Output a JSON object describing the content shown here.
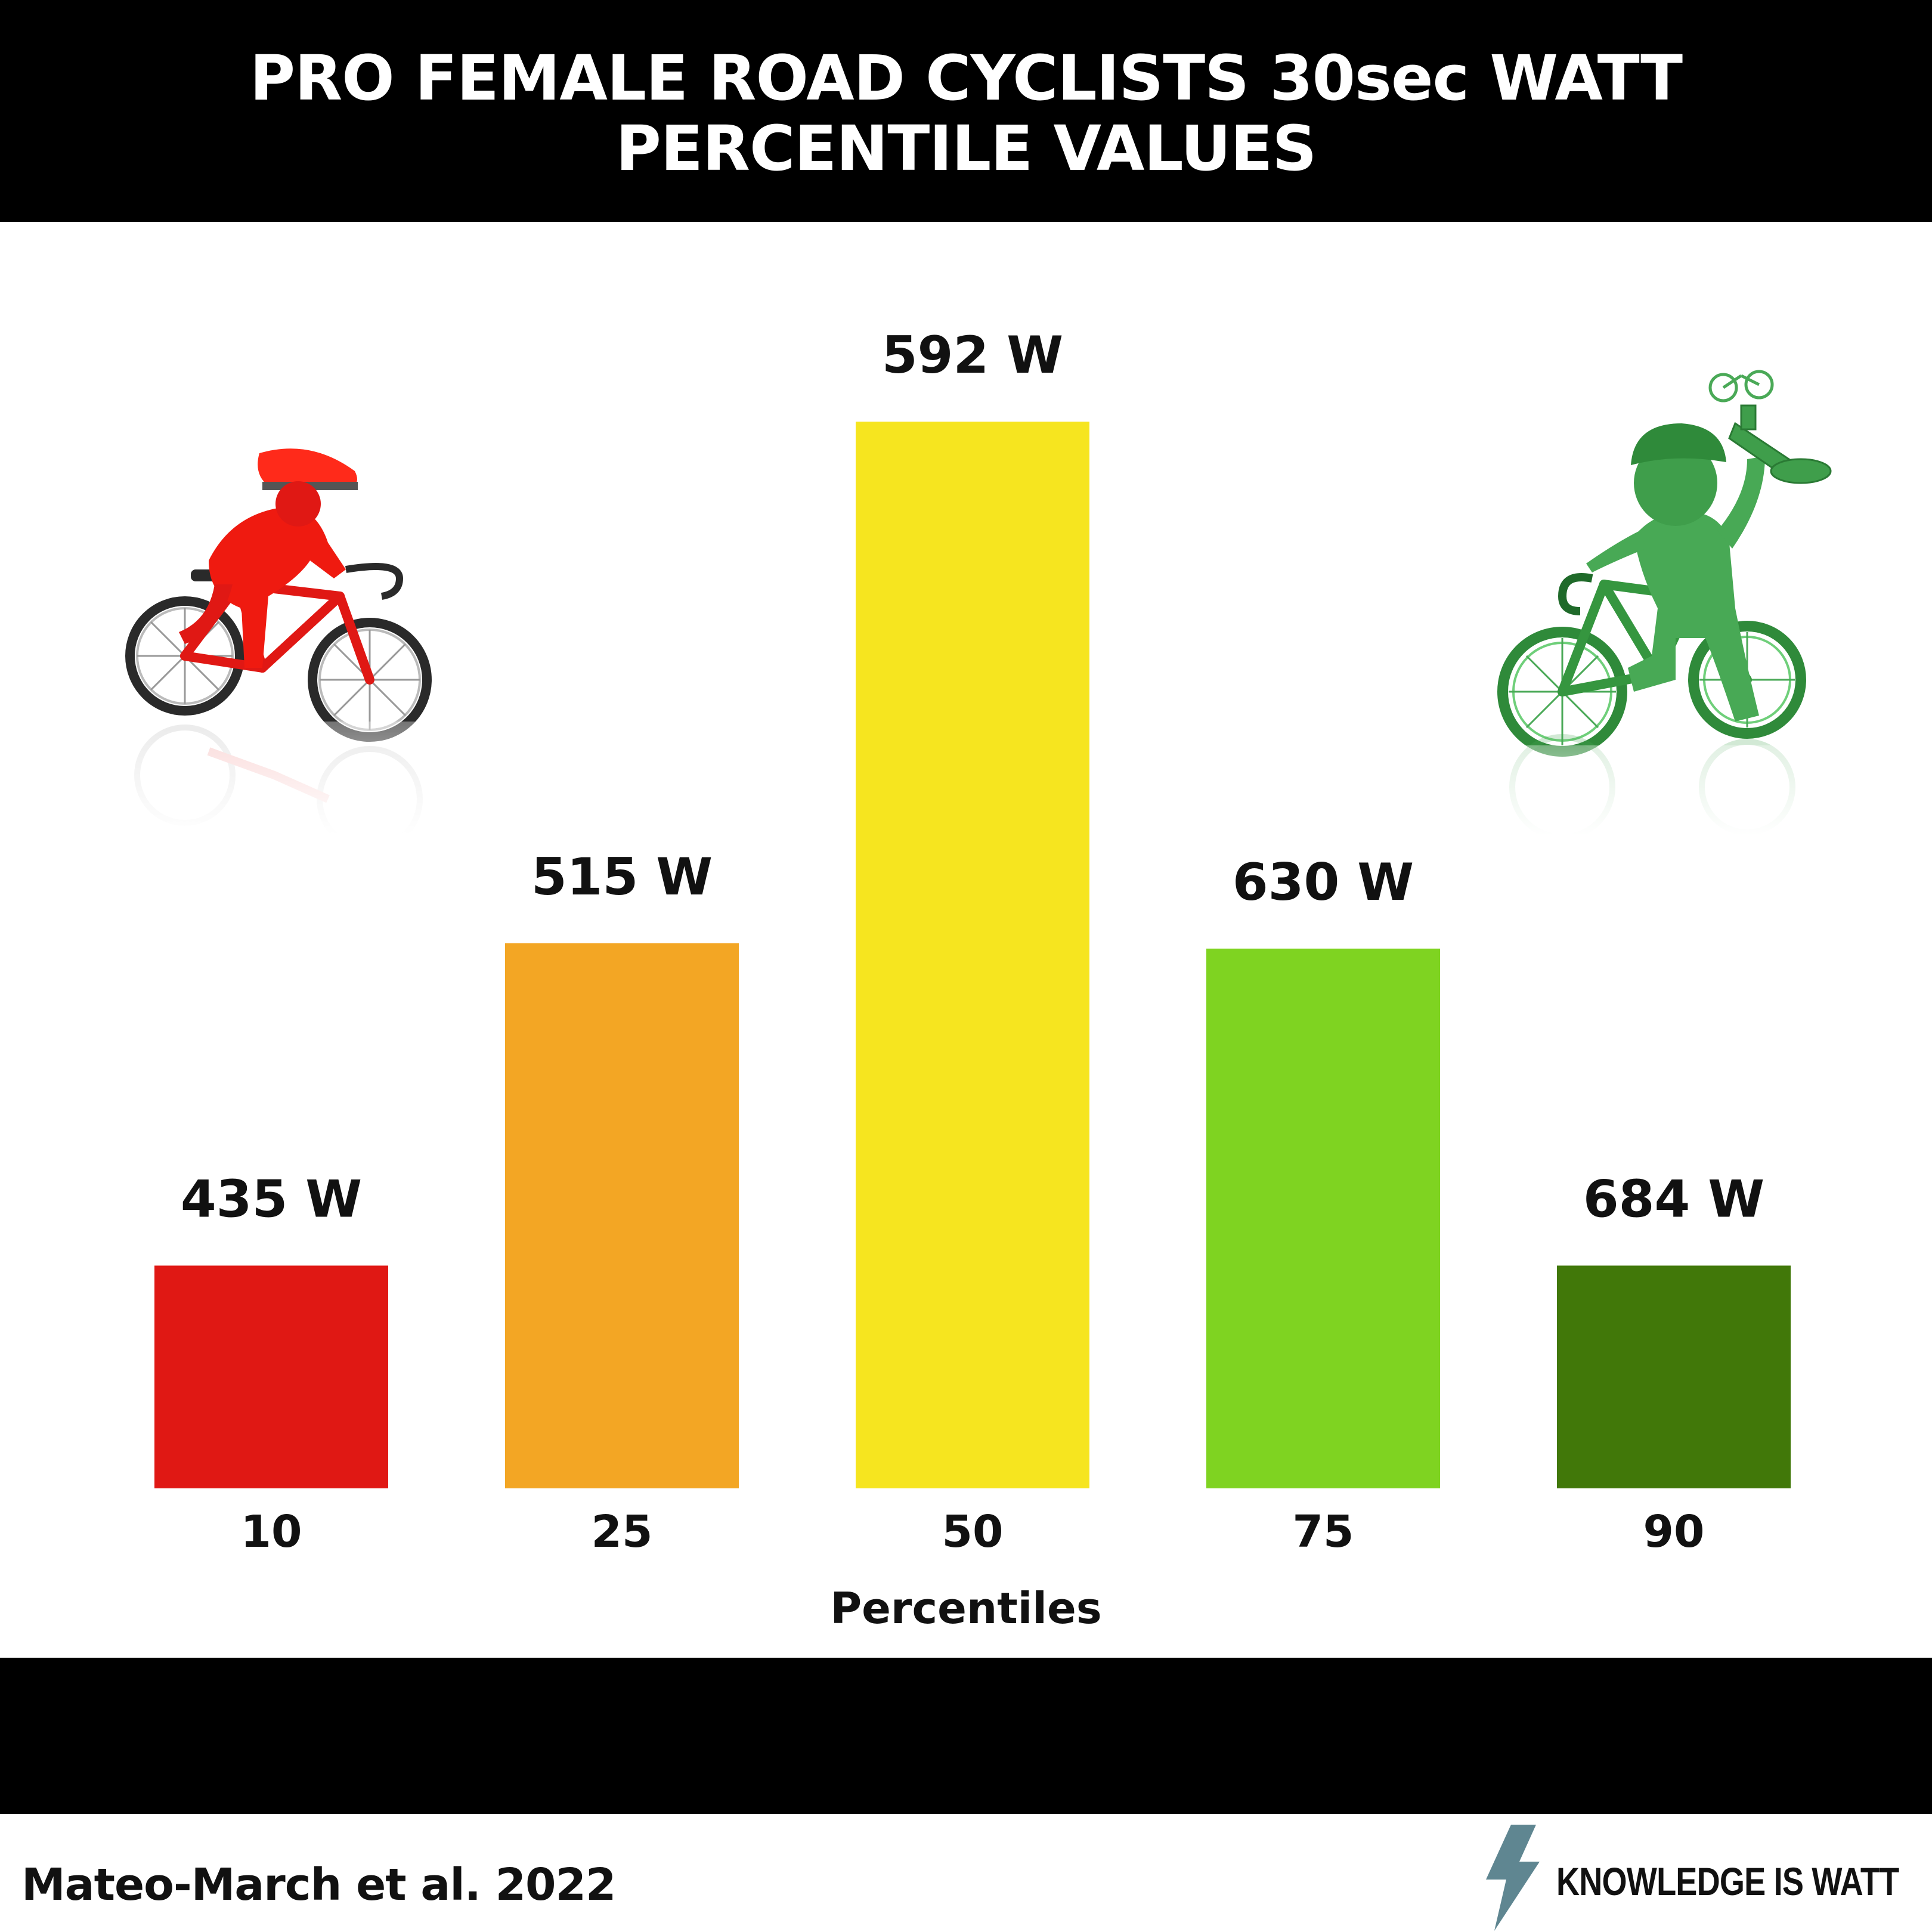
{
  "header": {
    "title_line1": "PRO FEMALE ROAD CYCLISTS  30sec WATT",
    "title_line2": "PERCENTILE VALUES"
  },
  "chart_data": {
    "type": "bar",
    "title": "PRO FEMALE ROAD CYCLISTS  30sec WATT PERCENTILE VALUES",
    "xlabel": "Percentiles",
    "ylabel": "",
    "categories": [
      "10",
      "25",
      "50",
      "75",
      "90"
    ],
    "values": [
      435,
      515,
      592,
      630,
      684
    ],
    "data_labels": [
      "435 W",
      "515 W",
      "592 W",
      "630 W",
      "684 W"
    ],
    "relative_bar_heights": [
      0.208,
      0.509,
      0.996,
      0.504,
      0.208
    ],
    "colors": [
      "#e01814",
      "#f3a624",
      "#f6e51f",
      "#7fd321",
      "#417809"
    ],
    "grid": false,
    "legend": "none"
  },
  "illustrations": {
    "left": "red-cyclist-riding",
    "right": "green-cyclist-holding-trophy"
  },
  "footer": {
    "source": "Mateo-March et al. 2022",
    "brand": "KNOWLEDGE IS WATT",
    "brand_icon": "lightning-bolt-icon",
    "brand_icon_color": "#5f8691"
  }
}
